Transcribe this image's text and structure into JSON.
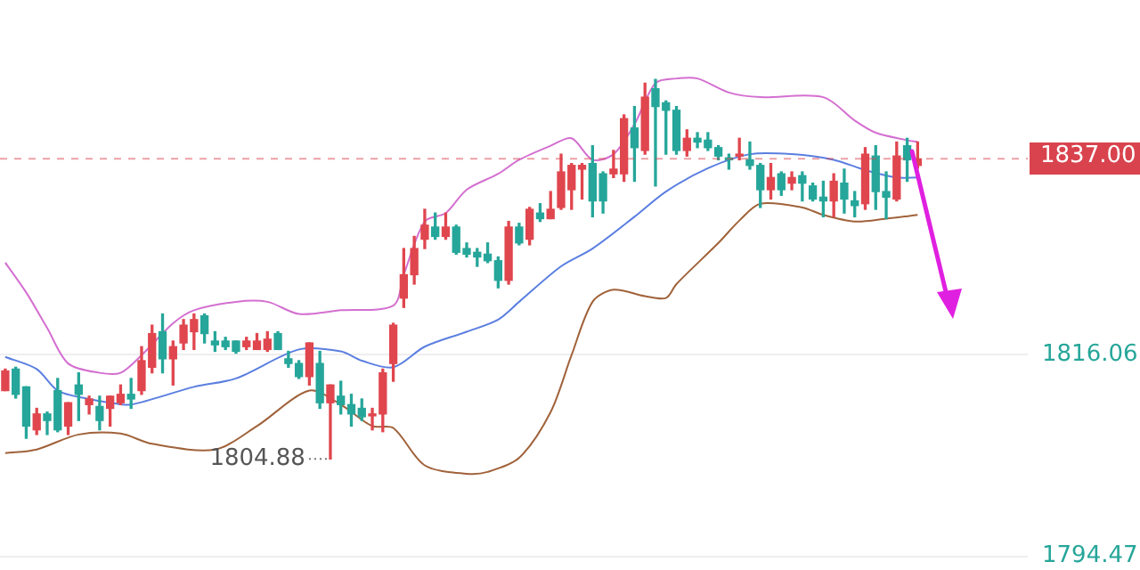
{
  "chart_data": {
    "type": "candlestick",
    "categories": [
      null,
      null,
      null,
      null,
      null,
      null,
      null,
      null,
      null,
      null,
      null,
      null,
      null,
      null,
      null,
      null,
      null,
      null,
      null,
      null,
      null,
      null,
      null,
      null,
      null,
      null,
      null,
      null,
      null,
      null,
      null,
      null,
      null,
      null,
      null,
      null,
      null,
      null,
      null,
      null,
      null,
      null,
      null,
      null,
      null,
      null,
      null,
      null,
      null,
      null,
      null,
      null,
      null,
      null,
      null,
      null,
      null,
      null,
      null,
      null,
      null,
      null,
      null,
      null,
      null,
      null,
      null,
      null,
      null,
      null,
      null,
      null,
      null,
      null,
      null,
      null,
      null,
      null,
      null,
      null,
      null,
      null,
      null,
      null,
      null,
      null,
      null,
      null,
      null,
      null,
      null,
      null,
      null,
      null,
      null,
      null,
      null,
      null
    ],
    "ohlc": [
      [
        1812.2,
        1814.5,
        1812.2,
        1814.3
      ],
      [
        1814.5,
        1814.7,
        1811.4,
        1811.8
      ],
      [
        1812.6,
        1812.6,
        1807.1,
        1808.4
      ],
      [
        1808.0,
        1810.3,
        1807.5,
        1809.7
      ],
      [
        1809.7,
        1809.9,
        1807.5,
        1809.0
      ],
      [
        1812.2,
        1813.5,
        1807.8,
        1808.0
      ],
      [
        1808.4,
        1810.9,
        1807.5,
        1810.9
      ],
      [
        1812.8,
        1814.1,
        1809.0,
        1811.8
      ],
      [
        1810.7,
        1811.6,
        1809.7,
        1811.3
      ],
      [
        1810.5,
        1811.6,
        1808.0,
        1809.0
      ],
      [
        1810.3,
        1811.6,
        1808.4,
        1811.6
      ],
      [
        1810.9,
        1812.8,
        1810.7,
        1811.8
      ],
      [
        1811.8,
        1813.5,
        1810.3,
        1811.3
      ],
      [
        1812.2,
        1816.9,
        1811.8,
        1815.4
      ],
      [
        1814.7,
        1819.2,
        1814.1,
        1818.3
      ],
      [
        1818.5,
        1820.4,
        1814.1,
        1815.6
      ],
      [
        1815.6,
        1817.5,
        1812.8,
        1816.9
      ],
      [
        1817.3,
        1819.8,
        1816.6,
        1819.2
      ],
      [
        1818.5,
        1820.4,
        1816.6,
        1819.8
      ],
      [
        1820.2,
        1820.4,
        1817.3,
        1818.3
      ],
      [
        1817.5,
        1818.5,
        1816.4,
        1817.1
      ],
      [
        1817.5,
        1817.9,
        1816.6,
        1816.9
      ],
      [
        1817.5,
        1817.5,
        1816.2,
        1816.4
      ],
      [
        1816.9,
        1817.9,
        1816.6,
        1817.5
      ],
      [
        1816.6,
        1818.3,
        1816.6,
        1817.5
      ],
      [
        1816.6,
        1818.5,
        1816.4,
        1817.7
      ],
      [
        1818.3,
        1818.5,
        1816.6,
        1816.6
      ],
      [
        1815.6,
        1816.4,
        1814.7,
        1815.1
      ],
      [
        1815.1,
        1815.4,
        1813.5,
        1813.7
      ],
      [
        1813.7,
        1817.3,
        1812.8,
        1817.3
      ],
      [
        1815.1,
        1816.4,
        1810.3,
        1810.9
      ],
      [
        1810.9,
        1812.8,
        1804.88,
        1812.8
      ],
      [
        1811.6,
        1813.2,
        1809.7,
        1810.7
      ],
      [
        1810.7,
        1811.8,
        1808.4,
        1809.7
      ],
      [
        1810.3,
        1811.3,
        1809.0,
        1809.4
      ],
      [
        1809.5,
        1810.3,
        1808.0,
        1809.7
      ],
      [
        1809.7,
        1814.5,
        1807.8,
        1814.1
      ],
      [
        1815.1,
        1819.4,
        1813.2,
        1819.2
      ],
      [
        1822.1,
        1827.4,
        1821.1,
        1824.6
      ],
      [
        1824.6,
        1828.7,
        1823.6,
        1827.4
      ],
      [
        1828.4,
        1831.6,
        1827.4,
        1829.9
      ],
      [
        1829.7,
        1831.2,
        1828.4,
        1828.7
      ],
      [
        1828.7,
        1831.2,
        1828.4,
        1829.7
      ],
      [
        1829.7,
        1829.9,
        1826.8,
        1827.0
      ],
      [
        1827.4,
        1828.0,
        1826.5,
        1826.8
      ],
      [
        1827.0,
        1827.4,
        1825.5,
        1826.5
      ],
      [
        1826.8,
        1828.0,
        1825.9,
        1826.1
      ],
      [
        1826.1,
        1826.5,
        1823.2,
        1824.0
      ],
      [
        1824.0,
        1830.3,
        1823.6,
        1829.7
      ],
      [
        1829.7,
        1830.1,
        1827.8,
        1828.0
      ],
      [
        1828.4,
        1831.8,
        1827.8,
        1831.6
      ],
      [
        1831.2,
        1832.2,
        1830.3,
        1830.6
      ],
      [
        1830.6,
        1833.5,
        1830.6,
        1831.6
      ],
      [
        1831.8,
        1837.5,
        1831.6,
        1835.6
      ],
      [
        1833.7,
        1836.5,
        1831.6,
        1836.3
      ],
      [
        1835.9,
        1836.5,
        1832.7,
        1836.3
      ],
      [
        1836.5,
        1838.4,
        1830.8,
        1832.5
      ],
      [
        1835.4,
        1835.6,
        1831.2,
        1832.5
      ],
      [
        1835.4,
        1837.9,
        1835.0,
        1835.9
      ],
      [
        1835.4,
        1841.7,
        1834.6,
        1841.3
      ],
      [
        1840.3,
        1842.6,
        1834.6,
        1838.2
      ],
      [
        1837.9,
        1845.1,
        1837.5,
        1843.6
      ],
      [
        1844.5,
        1845.5,
        1834.1,
        1842.6
      ],
      [
        1843.0,
        1843.2,
        1837.5,
        1842.2
      ],
      [
        1842.2,
        1842.6,
        1837.5,
        1837.9
      ],
      [
        1837.9,
        1840.1,
        1837.3,
        1839.2
      ],
      [
        1839.2,
        1839.8,
        1838.2,
        1838.8
      ],
      [
        1839.0,
        1839.8,
        1837.9,
        1838.2
      ],
      [
        1838.2,
        1838.4,
        1836.9,
        1837.3
      ],
      [
        1837.1,
        1837.5,
        1835.9,
        1836.9
      ],
      [
        1837.3,
        1839.2,
        1836.9,
        1837.5
      ],
      [
        1836.9,
        1838.8,
        1835.9,
        1836.3
      ],
      [
        1836.3,
        1836.5,
        1831.8,
        1833.7
      ],
      [
        1833.7,
        1836.5,
        1832.7,
        1835.0
      ],
      [
        1835.4,
        1835.6,
        1833.1,
        1833.7
      ],
      [
        1834.4,
        1835.6,
        1833.7,
        1835.0
      ],
      [
        1835.2,
        1835.6,
        1832.5,
        1834.4
      ],
      [
        1834.1,
        1834.4,
        1832.5,
        1832.7
      ],
      [
        1832.9,
        1834.6,
        1830.8,
        1832.5
      ],
      [
        1832.5,
        1835.4,
        1830.8,
        1834.6
      ],
      [
        1834.4,
        1835.9,
        1831.2,
        1832.7
      ],
      [
        1832.5,
        1833.5,
        1830.8,
        1832.0
      ],
      [
        1832.2,
        1838.2,
        1831.6,
        1837.5
      ],
      [
        1837.3,
        1838.4,
        1831.6,
        1833.5
      ],
      [
        1833.5,
        1835.6,
        1830.6,
        1832.9
      ],
      [
        1832.7,
        1838.8,
        1832.5,
        1837.3
      ],
      [
        1838.4,
        1839.2,
        1834.6,
        1836.9
      ],
      [
        1836.3,
        1838.8,
        1836.0,
        1837.0
      ],
      null,
      null,
      null,
      null,
      null,
      null,
      null,
      null,
      null,
      null
    ],
    "colors": [
      "#e0464e",
      "#26a69a",
      "#26a69a",
      "#e0464e",
      "#26a69a",
      "#26a69a",
      "#e0464e",
      "#26a69a",
      "#e0464e",
      "#26a69a",
      "#e0464e",
      "#e0464e",
      "#26a69a",
      "#e0464e",
      "#e0464e",
      "#26a69a",
      "#e0464e",
      "#e0464e",
      "#e0464e",
      "#26a69a",
      "#26a69a",
      "#26a69a",
      "#26a69a",
      "#e0464e",
      "#e0464e",
      "#e0464e",
      "#26a69a",
      "#26a69a",
      "#26a69a",
      "#e0464e",
      "#26a69a",
      "#e0464e",
      "#26a69a",
      "#26a69a",
      "#26a69a",
      "#e0464e",
      "#e0464e",
      "#e0464e",
      "#e0464e",
      "#e0464e",
      "#e0464e",
      "#26a69a",
      "#e0464e",
      "#26a69a",
      "#26a69a",
      "#26a69a",
      "#26a69a",
      "#26a69a",
      "#e0464e",
      "#26a69a",
      "#e0464e",
      "#26a69a",
      "#e0464e",
      "#e0464e",
      "#e0464e",
      "#e0464e",
      "#26a69a",
      "#26a69a",
      "#e0464e",
      "#e0464e",
      "#26a69a",
      "#e0464e",
      "#26a69a",
      "#26a69a",
      "#26a69a",
      "#e0464e",
      "#26a69a",
      "#26a69a",
      "#26a69a",
      "#26a69a",
      "#e0464e",
      "#26a69a",
      "#26a69a",
      "#e0464e",
      "#26a69a",
      "#e0464e",
      "#26a69a",
      "#26a69a",
      "#26a69a",
      "#e0464e",
      "#26a69a",
      "#26a69a",
      "#e0464e",
      "#26a69a",
      "#26a69a",
      "#e0464e",
      "#26a69a",
      "#e0464e",
      null,
      null,
      null,
      null,
      null,
      null,
      null,
      null,
      null,
      null
    ],
    "series": [
      {
        "type": "line",
        "color": "#d46fd0",
        "values": [
          1825.9,
          null,
          1822.7,
          null,
          1818.9,
          null,
          1815.1,
          null,
          null,
          1814.1,
          null,
          1814.1,
          null,
          1816.0,
          null,
          null,
          1819.4,
          null,
          1820.8,
          null,
          null,
          null,
          1821.7,
          null,
          null,
          1821.7,
          null,
          null,
          1820.4,
          null,
          null,
          null,
          1820.8,
          null,
          null,
          null,
          null,
          1821.3,
          1824.6,
          null,
          1830.3,
          null,
          1831.2,
          null,
          1833.7,
          null,
          null,
          1835.4,
          null,
          1836.9,
          null,
          null,
          1838.4,
          null,
          1839.2,
          null,
          1836.9,
          null,
          1837.5,
          null,
          1840.7,
          null,
          1845.1,
          null,
          1845.6,
          null,
          1845.6,
          null,
          null,
          1844.1,
          null,
          null,
          1843.6,
          null,
          null,
          null,
          null,
          null,
          1843.6,
          null,
          null,
          1841.1,
          null,
          1839.8,
          null,
          null,
          1839.0,
          1838.8,
          null,
          null,
          null,
          null,
          null,
          null,
          null,
          null,
          null,
          null
        ]
      },
      {
        "type": "line",
        "color": "#5b7fe0",
        "values": [
          1815.8,
          null,
          null,
          1814.5,
          null,
          1812.2,
          null,
          null,
          1811.3,
          null,
          1810.9,
          null,
          1810.7,
          null,
          null,
          null,
          null,
          null,
          1812.6,
          null,
          null,
          null,
          1813.5,
          null,
          null,
          null,
          null,
          null,
          1816.6,
          null,
          null,
          null,
          1816.4,
          null,
          1815.4,
          null,
          null,
          1814.7,
          null,
          null,
          1816.9,
          null,
          null,
          null,
          1818.5,
          null,
          null,
          1819.8,
          null,
          1821.7,
          null,
          null,
          null,
          1825.5,
          null,
          null,
          1827.4,
          null,
          null,
          null,
          1830.8,
          null,
          null,
          1833.5,
          null,
          null,
          null,
          1836.0,
          null,
          null,
          null,
          1837.5,
          null,
          null,
          null,
          1837.5,
          null,
          null,
          null,
          1836.9,
          null,
          null,
          1835.8,
          null,
          null,
          1835.0,
          null,
          1835.0,
          null,
          null,
          null,
          null,
          null,
          null,
          null,
          null,
          null,
          null
        ]
      },
      {
        "type": "line",
        "color": "#a0623a",
        "values": [
          1805.5,
          null,
          null,
          1805.9,
          null,
          null,
          null,
          1807.5,
          null,
          null,
          null,
          1807.6,
          null,
          null,
          1806.5,
          null,
          null,
          null,
          null,
          null,
          1805.9,
          null,
          null,
          null,
          1808.4,
          null,
          null,
          null,
          null,
          1812.2,
          null,
          null,
          1810.7,
          null,
          null,
          1808.4,
          null,
          1808.2,
          null,
          null,
          1804.2,
          null,
          null,
          null,
          1803.3,
          null,
          1803.5,
          null,
          null,
          1805.0,
          null,
          null,
          1809.9,
          null,
          1816.0,
          null,
          1821.7,
          null,
          1823.0,
          null,
          null,
          1822.3,
          null,
          1822.1,
          1823.6,
          null,
          null,
          null,
          1828.0,
          null,
          1830.4,
          null,
          1832.2,
          null,
          null,
          null,
          1831.8,
          null,
          1831.0,
          null,
          null,
          1830.3,
          null,
          null,
          1830.6,
          null,
          null,
          1831.0,
          null,
          null,
          null,
          null,
          null,
          null,
          null,
          null,
          null,
          null
        ]
      }
    ],
    "ylim": [
      1793,
      1854
    ],
    "yticks": [
      1794.47,
      1816.06
    ],
    "grid": "y",
    "tick_labels": "y",
    "ref_lines": [
      {
        "axis": "y",
        "value": 1837,
        "label": "1837.00",
        "color": "#d9434e",
        "line_style": "dashed"
      }
    ],
    "annotations": [
      "1804.88"
    ]
  }
}
